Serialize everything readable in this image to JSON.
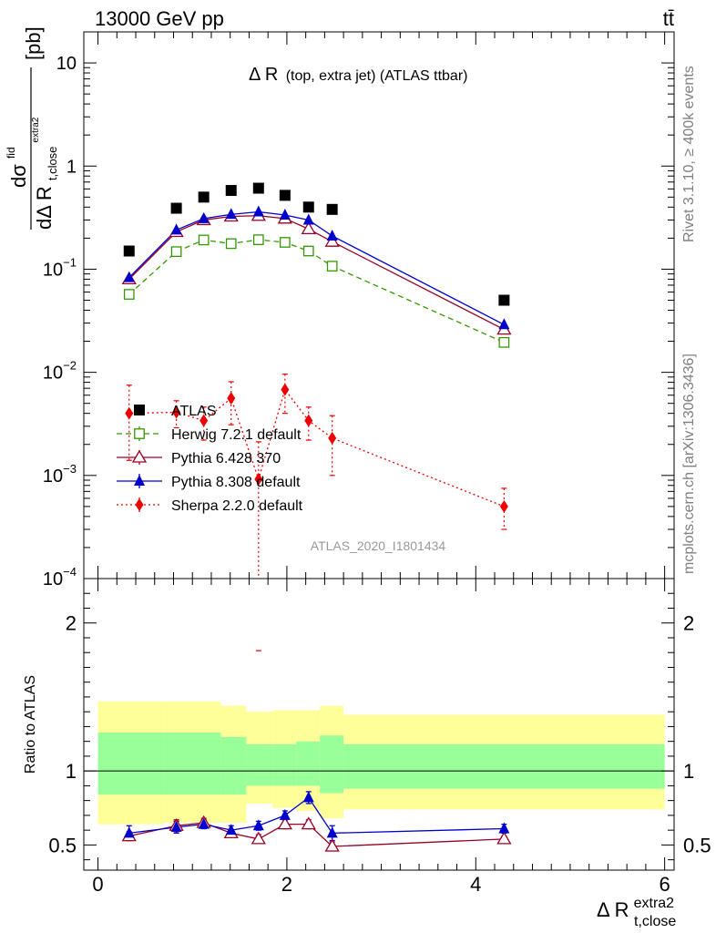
{
  "header": {
    "left": "13000 GeV pp",
    "right": "tt̄"
  },
  "side": {
    "top": "Rivet 3.1.10, ≥ 400k events",
    "bottom": "mcplots.cern.ch [arXiv:1306.3436]"
  },
  "chart_data": {
    "type": "scatter",
    "title": "Δ R (top, extra jet) (ATLAS ttbar)",
    "title_main": "Δ R",
    "title_sub": "(top, extra jet) (ATLAS ttbar)",
    "analysis_label": "ATLAS_2020_I1801434",
    "ylabel": {
      "numer": "dσ",
      "numer_sup": "fid",
      "denom": "dΔ R",
      "denom_sub": "t,close",
      "denom_sup": "extra2",
      "unit": "[pb]"
    },
    "xlabel": {
      "main": "Δ R",
      "sub": "t,close",
      "sup": "extra2"
    },
    "xlim": [
      -0.15,
      6.1
    ],
    "xticks": [
      0,
      2,
      4,
      6
    ],
    "xtick_labels": [
      "0",
      "2",
      "4",
      "6"
    ],
    "main_panel": {
      "yscale": "log",
      "ylim": [
        0.0001,
        20
      ],
      "yticks": [
        0.0001,
        0.001,
        0.01,
        0.1,
        1,
        10
      ],
      "ytick_labels": [
        {
          "base": "10",
          "exp": "−4"
        },
        {
          "base": "10",
          "exp": "−3"
        },
        {
          "base": "10",
          "exp": "−2"
        },
        {
          "base": "10",
          "exp": "−1"
        },
        {
          "base": "1",
          "exp": ""
        },
        {
          "base": "10",
          "exp": ""
        }
      ]
    },
    "ratio_panel": {
      "ylabel": "Ratio to ATLAS",
      "ylim": [
        0.33,
        2.3
      ],
      "yticks": [
        0.5,
        1,
        2
      ],
      "ytick_labels": [
        "0.5",
        "1",
        "2"
      ],
      "bands": [
        {
          "lo": 0.0,
          "hi": 0.7,
          "g": [
            0.84,
            1.26
          ],
          "y": [
            0.64,
            1.47
          ]
        },
        {
          "lo": 0.7,
          "hi": 1.3,
          "g": [
            0.84,
            1.26
          ],
          "y": [
            0.65,
            1.47
          ]
        },
        {
          "lo": 1.3,
          "hi": 1.57,
          "g": [
            0.84,
            1.23
          ],
          "y": [
            0.65,
            1.44
          ]
        },
        {
          "lo": 1.57,
          "hi": 1.85,
          "g": [
            0.9,
            1.18
          ],
          "y": [
            0.78,
            1.4
          ]
        },
        {
          "lo": 1.85,
          "hi": 2.1,
          "g": [
            0.9,
            1.18
          ],
          "y": [
            0.75,
            1.41
          ]
        },
        {
          "lo": 2.1,
          "hi": 2.35,
          "g": [
            0.9,
            1.2
          ],
          "y": [
            0.73,
            1.41
          ]
        },
        {
          "lo": 2.35,
          "hi": 2.6,
          "g": [
            0.85,
            1.24
          ],
          "y": [
            0.68,
            1.44
          ]
        },
        {
          "lo": 2.6,
          "hi": 6.0,
          "g": [
            0.88,
            1.18
          ],
          "y": [
            0.74,
            1.38
          ]
        }
      ]
    },
    "x": [
      0.33,
      0.83,
      1.12,
      1.41,
      1.7,
      1.98,
      2.23,
      2.48,
      4.3
    ],
    "series": [
      {
        "name": "ATLAS",
        "color": "#000000",
        "marker": "square-filled",
        "line": "none",
        "values": [
          0.15,
          0.39,
          0.5,
          0.58,
          0.61,
          0.52,
          0.4,
          0.38,
          0.05
        ]
      },
      {
        "name": "Herwig 7.2.1 default",
        "color": "#339900",
        "marker": "square-open",
        "line": "dashed",
        "values": [
          0.057,
          0.148,
          0.192,
          0.177,
          0.193,
          0.182,
          0.15,
          0.107,
          0.0195
        ],
        "ratio": []
      },
      {
        "name": "Pythia 6.428 370",
        "color": "#990022",
        "marker": "triangle-open",
        "line": "solid",
        "values": [
          0.08,
          0.23,
          0.3,
          0.325,
          0.33,
          0.31,
          0.245,
          0.185,
          0.026
        ],
        "ratio": [
          0.56,
          0.63,
          0.65,
          0.58,
          0.54,
          0.64,
          0.64,
          0.49,
          0.54
        ],
        "ratio_err": [
          0.03,
          0.04,
          0.03,
          0.02,
          0.03,
          0.03,
          0.03,
          0.03,
          0.02
        ]
      },
      {
        "name": "Pythia 8.308 default",
        "color": "#0000cc",
        "marker": "triangle-filled",
        "line": "solid",
        "values": [
          0.083,
          0.24,
          0.31,
          0.34,
          0.36,
          0.335,
          0.3,
          0.21,
          0.029
        ],
        "ratio": [
          0.58,
          0.62,
          0.64,
          0.6,
          0.63,
          0.7,
          0.82,
          0.58,
          0.61
        ],
        "ratio_err": [
          0.05,
          0.04,
          0.03,
          0.03,
          0.03,
          0.03,
          0.04,
          0.05,
          0.03
        ]
      },
      {
        "name": "Sherpa 2.2.0 default",
        "color": "#ee0000",
        "marker": "diamond-filled",
        "line": "dotted",
        "values": [
          0.004,
          0.0041,
          0.0034,
          0.0056,
          0.00092,
          0.0068,
          0.0034,
          0.0023,
          0.0005
        ],
        "err_lo": [
          0.0026,
          0.0012,
          0.0012,
          0.0025,
          0.0009,
          0.0028,
          0.0012,
          0.0013,
          0.0002
        ],
        "err_hi": [
          0.0035,
          0.0012,
          0.0012,
          0.0025,
          0.0012,
          0.0028,
          0.0012,
          0.0015,
          0.00025
        ]
      }
    ]
  }
}
